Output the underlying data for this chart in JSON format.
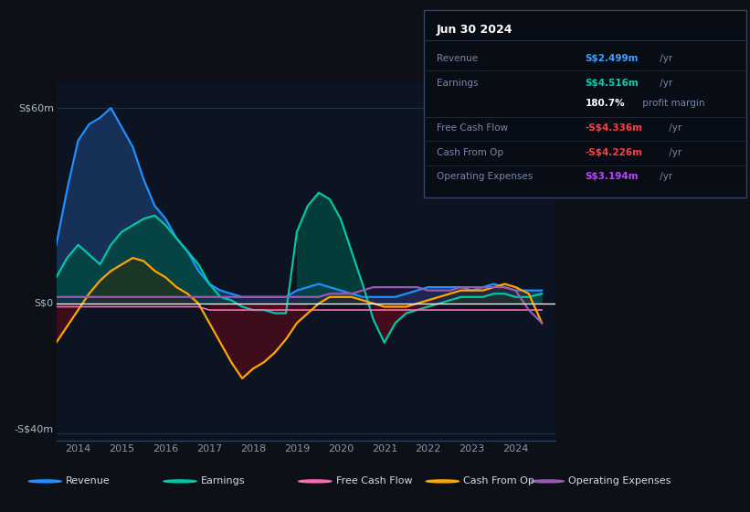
{
  "bg_color": "#0d1117",
  "chart_bg": "#0d1421",
  "title_date": "Jun 30 2024",
  "ylabel_top": "S$60m",
  "ylabel_zero": "S$0",
  "ylabel_bot": "-S$40m",
  "ylim": [
    -42,
    68
  ],
  "xlim": [
    2013.5,
    2024.9
  ],
  "colors": {
    "revenue": "#1e90ff",
    "earnings": "#00c8a8",
    "fcf": "#ff69b4",
    "cashfromop": "#ffa500",
    "opex": "#9b59b6"
  },
  "fill_colors": {
    "revenue": "#1a3a6a",
    "earnings": "#004a40",
    "negative": "#5a0a1a",
    "opex_pos": "#2a1a4a"
  },
  "legend": [
    {
      "label": "Revenue",
      "color": "#1e90ff"
    },
    {
      "label": "Earnings",
      "color": "#00c8a8"
    },
    {
      "label": "Free Cash Flow",
      "color": "#ff69b4"
    },
    {
      "label": "Cash From Op",
      "color": "#ffa500"
    },
    {
      "label": "Operating Expenses",
      "color": "#9b59b6"
    }
  ],
  "x": [
    2013.5,
    2013.75,
    2014.0,
    2014.25,
    2014.5,
    2014.75,
    2015.0,
    2015.25,
    2015.5,
    2015.75,
    2016.0,
    2016.25,
    2016.5,
    2016.75,
    2017.0,
    2017.25,
    2017.5,
    2017.75,
    2018.0,
    2018.25,
    2018.5,
    2018.75,
    2019.0,
    2019.25,
    2019.5,
    2019.75,
    2020.0,
    2020.25,
    2020.5,
    2020.75,
    2021.0,
    2021.25,
    2021.5,
    2021.75,
    2022.0,
    2022.25,
    2022.5,
    2022.75,
    2023.0,
    2023.25,
    2023.5,
    2023.75,
    2024.0,
    2024.3,
    2024.6
  ],
  "revenue": [
    18,
    35,
    50,
    55,
    57,
    60,
    54,
    48,
    38,
    30,
    26,
    20,
    16,
    10,
    6,
    4,
    3,
    2,
    2,
    2,
    2,
    2,
    4,
    5,
    6,
    5,
    4,
    3,
    2,
    2,
    2,
    2,
    3,
    4,
    5,
    5,
    5,
    5,
    4,
    5,
    6,
    5,
    4,
    4,
    4
  ],
  "earnings": [
    8,
    14,
    18,
    15,
    12,
    18,
    22,
    24,
    26,
    27,
    24,
    20,
    16,
    12,
    6,
    2,
    1,
    -1,
    -2,
    -2,
    -3,
    -3,
    22,
    30,
    34,
    32,
    26,
    16,
    6,
    -5,
    -12,
    -6,
    -3,
    -2,
    -1,
    0,
    1,
    2,
    2,
    2,
    3,
    3,
    2,
    2,
    3
  ],
  "fcf": [
    -1,
    -1,
    -1,
    -1,
    -1,
    -1,
    -1,
    -1,
    -1,
    -1,
    -1,
    -1,
    -1,
    -1,
    -2,
    -2,
    -2,
    -2,
    -2,
    -2,
    -2,
    -2,
    -2,
    -2,
    -2,
    -2,
    -2,
    -2,
    -2,
    -2,
    -2,
    -2,
    -2,
    -2,
    -2,
    -2,
    -2,
    -2,
    -2,
    -2,
    -2,
    -2,
    -2,
    -2,
    -2
  ],
  "cashfromop": [
    -12,
    -7,
    -2,
    3,
    7,
    10,
    12,
    14,
    13,
    10,
    8,
    5,
    3,
    0,
    -6,
    -12,
    -18,
    -23,
    -20,
    -18,
    -15,
    -11,
    -6,
    -3,
    0,
    2,
    2,
    2,
    1,
    0,
    -1,
    -1,
    -1,
    0,
    1,
    2,
    3,
    4,
    4,
    4,
    5,
    6,
    5,
    3,
    -6
  ],
  "opex": [
    2,
    2,
    2,
    2,
    2,
    2,
    2,
    2,
    2,
    2,
    2,
    2,
    2,
    2,
    2,
    2,
    2,
    2,
    2,
    2,
    2,
    2,
    2,
    2,
    2,
    3,
    3,
    3,
    4,
    5,
    5,
    5,
    5,
    5,
    4,
    4,
    4,
    5,
    5,
    5,
    5,
    5,
    4,
    -2,
    -6
  ]
}
